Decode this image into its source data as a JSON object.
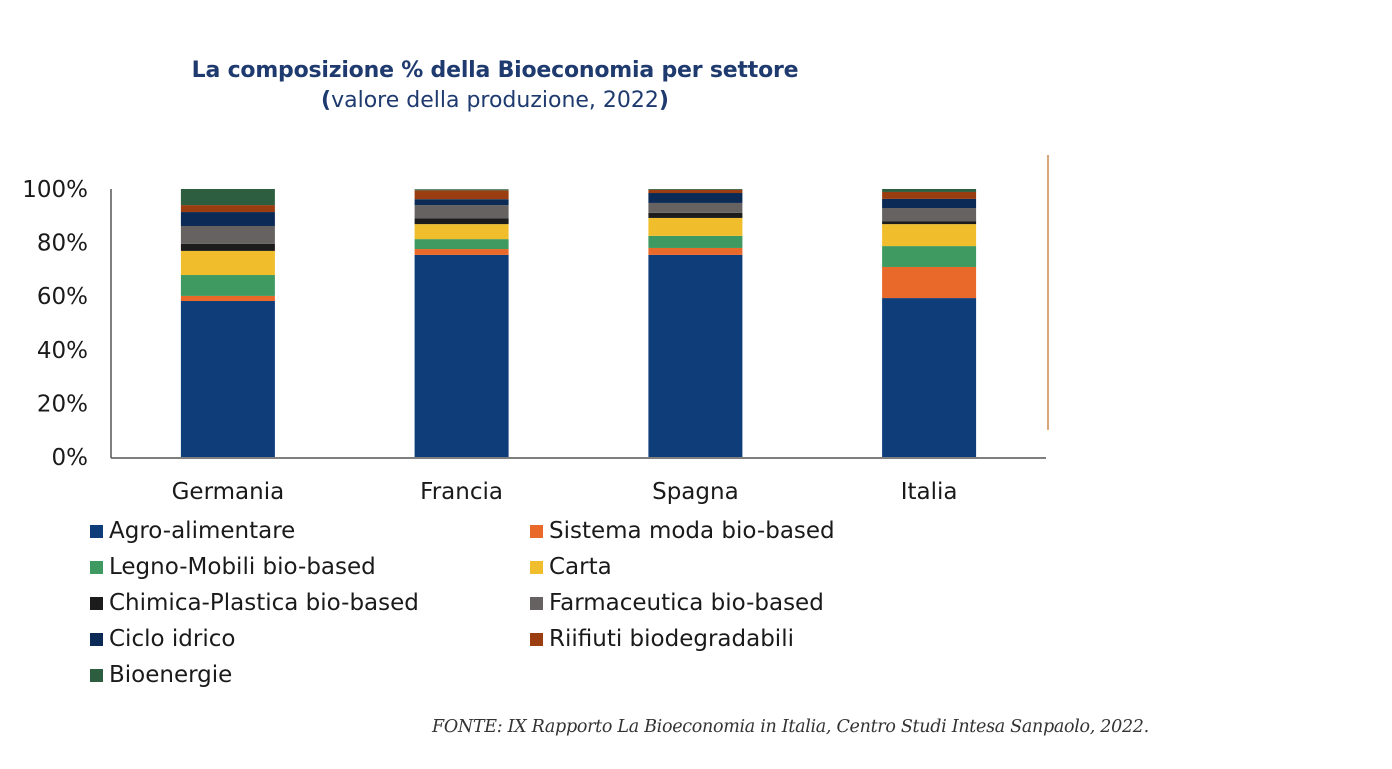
{
  "title": {
    "main": "La composizione % della Bioeconomia per settore",
    "sub_open": "(",
    "sub_text": "valore della produzione, 2022",
    "sub_close": ")"
  },
  "chart_data": {
    "type": "bar",
    "stacked": true,
    "title": "La composizione % della Bioeconomia per settore (valore della produzione, 2022)",
    "xlabel": "",
    "ylabel": "",
    "ylim": [
      0,
      100
    ],
    "yticks": [
      "0%",
      "20%",
      "40%",
      "60%",
      "80%",
      "100%"
    ],
    "ytick_values": [
      0,
      20,
      40,
      60,
      80,
      100
    ],
    "grid": false,
    "legend_position": "bottom",
    "categories": [
      "Germania",
      "Francia",
      "Spagna",
      "Italia"
    ],
    "series": [
      {
        "name": "Agro-alimentare",
        "color": "#0e3d7a",
        "values": [
          58.2,
          75.4,
          75.4,
          59.3
        ]
      },
      {
        "name": "Sistema moda bio-based",
        "color": "#e8692a",
        "values": [
          1.9,
          2.2,
          2.6,
          11.6
        ]
      },
      {
        "name": "Legno-Mobili bio-based",
        "color": "#3f9a62",
        "values": [
          7.8,
          3.7,
          4.5,
          7.8
        ]
      },
      {
        "name": "Carta",
        "color": "#f0bd2c",
        "values": [
          9.0,
          5.6,
          6.7,
          8.2
        ]
      },
      {
        "name": "Chimica-Plastica bio-based",
        "color": "#1c1c1c",
        "values": [
          2.6,
          2.2,
          1.9,
          1.1
        ]
      },
      {
        "name": "Farmaceutica bio-based",
        "color": "#666262",
        "values": [
          6.7,
          4.9,
          3.7,
          4.9
        ]
      },
      {
        "name": "Ciclo idrico",
        "color": "#0b2a55",
        "values": [
          5.2,
          2.2,
          3.7,
          3.4
        ]
      },
      {
        "name": "Riifiuti biodegradabili",
        "color": "#9a3e12",
        "values": [
          2.6,
          3.3,
          1.2,
          2.6
        ]
      },
      {
        "name": "Bioenergie",
        "color": "#2e5e40",
        "values": [
          6.0,
          0.4,
          0.3,
          1.1
        ]
      }
    ]
  },
  "legend": [
    {
      "label": "Agro-alimentare",
      "color": "#0e3d7a"
    },
    {
      "label": "Sistema moda bio-based",
      "color": "#e8692a"
    },
    {
      "label": "Legno-Mobili bio-based",
      "color": "#3f9a62"
    },
    {
      "label": "Carta",
      "color": "#f0bd2c"
    },
    {
      "label": "Chimica-Plastica bio-based",
      "color": "#1c1c1c"
    },
    {
      "label": "Farmaceutica bio-based",
      "color": "#666262"
    },
    {
      "label": "Ciclo idrico",
      "color": "#0b2a55"
    },
    {
      "label": "Riifiuti biodegradabili",
      "color": "#9a3e12"
    },
    {
      "label": "Bioenergie",
      "color": "#2e5e40"
    }
  ],
  "source": "FONTE: IX Rapporto La Bioeconomia in Italia, Centro Studi Intesa Sanpaolo, 2022."
}
